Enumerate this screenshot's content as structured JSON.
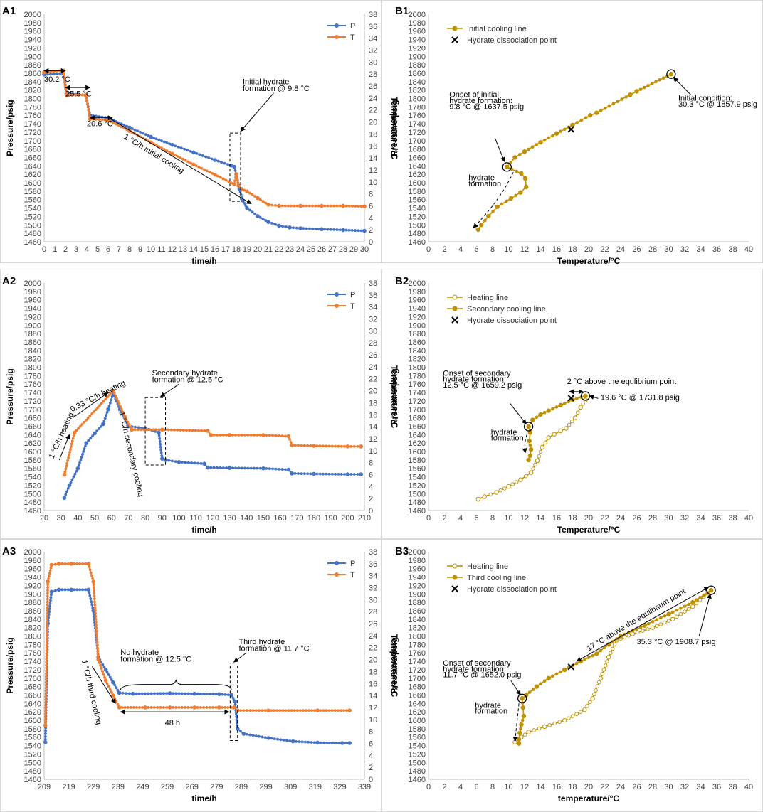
{
  "colors": {
    "P": "#4472C4",
    "T": "#ED7D31",
    "gold": "#BF9000",
    "box": "#000000"
  },
  "chart_data": [
    {
      "id": "A1",
      "type": "line",
      "panel_label": "A1",
      "xlabel": "time/h",
      "ylabel": "Pressure/psig",
      "y2label": "Temperature/°C",
      "xlim": [
        0,
        30
      ],
      "xstep": 1,
      "ylim": [
        1460,
        2000
      ],
      "ystep": 20,
      "y2lim": [
        0,
        38
      ],
      "y2step": 2,
      "series": [
        {
          "name": "P",
          "axis": "left",
          "color": "P",
          "x": [
            0,
            1.8,
            2.1,
            3.9,
            4.3,
            6.0,
            8,
            10,
            12,
            14,
            16,
            17.5,
            17.8,
            18.0,
            18.3,
            18.6,
            19,
            20,
            21,
            22,
            23,
            24,
            26,
            28,
            30
          ],
          "y": [
            1857,
            1859,
            1812,
            1808,
            1760,
            1754,
            1731,
            1709,
            1690,
            1672,
            1654,
            1641,
            1638,
            1620,
            1585,
            1558,
            1540,
            1521,
            1507,
            1498,
            1494,
            1492,
            1490,
            1488,
            1486
          ]
        },
        {
          "name": "T",
          "axis": "right",
          "color": "T",
          "x": [
            0,
            1.8,
            2.1,
            3.9,
            4.3,
            6.0,
            8,
            10,
            12,
            14,
            16,
            17.8,
            18.0,
            18.2,
            18.5,
            19,
            20,
            21,
            22,
            24,
            26,
            28,
            30
          ],
          "y": [
            28.3,
            28.6,
            24.5,
            24.5,
            20.5,
            20.3,
            18.5,
            16.6,
            14.7,
            12.9,
            11.2,
            9.6,
            11.3,
            9.4,
            8.8,
            8.4,
            7.3,
            6.2,
            6.0,
            6.0,
            6.0,
            6.0,
            5.9
          ]
        }
      ],
      "legend": [
        "P",
        "T"
      ],
      "annotations": [
        "30.2 °C",
        "25.5 °C",
        "20.6 °C",
        "1 °C/h initial cooling",
        "Initial hydrate",
        "formation @ 9.8 °C"
      ]
    },
    {
      "id": "B1",
      "type": "scatter",
      "panel_label": "B1",
      "xlabel": "Temperature/°C",
      "ylabel": "Pressure/psig",
      "xlim": [
        0,
        40
      ],
      "xstep": 2,
      "ylim": [
        1460,
        2000
      ],
      "ystep": 20,
      "series": [
        {
          "name": "Initial cooling line",
          "style": "filled",
          "x": [
            30.3,
            26,
            25.2,
            21,
            20.2,
            18,
            16,
            14,
            12,
            10.8,
            9.8,
            11.6,
            12.1,
            12.2,
            11.5,
            10.3,
            8.6,
            7.5,
            6.6,
            6.2
          ],
          "y": [
            1857.9,
            1817,
            1809,
            1766,
            1760,
            1737,
            1717,
            1696,
            1674,
            1660,
            1637.5,
            1622,
            1610,
            1590,
            1577,
            1563,
            1543,
            1521,
            1500,
            1489
          ]
        }
      ],
      "dissociation_point": {
        "x": 17.8,
        "y": 1727
      },
      "legend": [
        "Initial cooling line",
        "Hydrate dissociation point"
      ],
      "annotations": [
        "Onset of initial",
        "hydrate formation:",
        "9.8 °C @ 1637.5 psig",
        "Initial  condition:",
        "30.3 °C @ 1857.9 psig",
        "hydrate",
        "formation"
      ]
    },
    {
      "id": "A2",
      "type": "line",
      "panel_label": "A2",
      "xlabel": "time/h",
      "ylabel": "Pressure/psig",
      "y2label": "Temperature/°C",
      "xlim": [
        20,
        210
      ],
      "xstep": 10,
      "ylim": [
        1460,
        2000
      ],
      "ystep": 20,
      "y2lim": [
        0,
        38
      ],
      "y2step": 2,
      "series": [
        {
          "name": "P",
          "axis": "left",
          "color": "P",
          "x": [
            32,
            35,
            40,
            45,
            50,
            55,
            58,
            61,
            65,
            70,
            80,
            88,
            90,
            92,
            100,
            115,
            117,
            130,
            150,
            165,
            167,
            180,
            200,
            208
          ],
          "y": [
            1490,
            1520,
            1560,
            1620,
            1643,
            1665,
            1700,
            1738,
            1700,
            1660,
            1655,
            1645,
            1583,
            1580,
            1575,
            1571,
            1562,
            1561,
            1560,
            1557,
            1548,
            1547,
            1546,
            1546
          ]
        },
        {
          "name": "T",
          "axis": "right",
          "color": "T",
          "x": [
            32,
            38,
            61,
            68,
            72,
            90,
            117,
            119,
            130,
            150,
            165,
            167,
            180,
            200,
            208
          ],
          "y": [
            6.0,
            13.0,
            20.0,
            15.6,
            13.5,
            13.5,
            13.3,
            12.6,
            12.6,
            12.6,
            12.4,
            10.9,
            10.8,
            10.7,
            10.7
          ]
        }
      ],
      "legend": [
        "P",
        "T"
      ],
      "annotations": [
        "1 °C/h heating",
        "0.33 °C/h heating",
        "1 °C/h secondary cooling",
        "Secondary hydrate",
        "formation @ 12.5 °C"
      ]
    },
    {
      "id": "B2",
      "type": "scatter",
      "panel_label": "B2",
      "xlabel": "Temperature/°C",
      "ylabel": "Pressure/psig",
      "xlim": [
        0,
        40
      ],
      "xstep": 2,
      "ylim": [
        1460,
        2000
      ],
      "ystep": 20,
      "series": [
        {
          "name": "Heating line",
          "style": "open",
          "x": [
            6.2,
            7.0,
            8.5,
            10,
            11.5,
            12.8,
            13.6,
            14.2,
            15.0,
            15.7,
            16.5,
            17.2,
            18.3,
            19.0,
            19.6,
            19.6
          ],
          "y": [
            1487,
            1493,
            1503,
            1517,
            1533,
            1550,
            1578,
            1610,
            1633,
            1641,
            1649,
            1655,
            1680,
            1705,
            1722,
            1731.8
          ]
        },
        {
          "name": "Secondary cooling line",
          "style": "filled",
          "x": [
            19.6,
            18.0,
            16.5,
            15.0,
            14.0,
            13.0,
            12.5,
            12.7,
            12.6,
            12.8,
            12.7,
            12.5
          ],
          "y": [
            1731.8,
            1723,
            1710,
            1697,
            1688,
            1675,
            1659.2,
            1645,
            1625,
            1605,
            1590,
            1580
          ]
        }
      ],
      "dissociation_point": {
        "x": 17.8,
        "y": 1727
      },
      "legend": [
        "Heating line",
        "Secondary cooling line",
        "Hydrate dissociation point"
      ],
      "annotations": [
        "Onset of secondary",
        "hydrate formation:",
        "12.5 °C @ 1659.2 psig",
        "2 °C above the equlibrium point",
        "19.6 °C @ 1731.8 psig",
        "hydrate",
        "formation"
      ]
    },
    {
      "id": "A3",
      "type": "line",
      "panel_label": "A3",
      "xlabel": "time/h",
      "ylabel": "Pressure/psig",
      "y2label": "Temperature/°C",
      "xlim": [
        209,
        339
      ],
      "xstep": 10,
      "ylim": [
        1460,
        2000
      ],
      "ystep": 20,
      "y2lim": [
        0,
        38
      ],
      "y2step": 2,
      "series": [
        {
          "name": "P",
          "axis": "left",
          "color": "P",
          "x": [
            209.5,
            210.5,
            212,
            215,
            220,
            227,
            229,
            231,
            234,
            237,
            239.5,
            245,
            260,
            270,
            280,
            285,
            286.5,
            287.5,
            290,
            300,
            310,
            320,
            330,
            333
          ],
          "y": [
            1548,
            1830,
            1905,
            1910,
            1910,
            1910,
            1860,
            1750,
            1720,
            1690,
            1665,
            1663,
            1664,
            1663,
            1662,
            1660,
            1645,
            1580,
            1568,
            1558,
            1550,
            1547,
            1546,
            1546
          ]
        },
        {
          "name": "T",
          "axis": "right",
          "color": "T",
          "x": [
            209.5,
            210.5,
            212,
            215,
            220,
            227,
            229,
            231,
            234,
            237,
            239.5,
            250,
            260,
            270,
            280,
            286,
            287.5,
            300,
            320,
            333
          ],
          "y": [
            9.0,
            33.0,
            35.8,
            36.0,
            36.0,
            36.0,
            33.0,
            20.0,
            16.5,
            14.0,
            12.0,
            12.0,
            12.0,
            12.0,
            12.0,
            12.0,
            11.5,
            11.5,
            11.5,
            11.5
          ]
        }
      ],
      "legend": [
        "P",
        "T"
      ],
      "annotations": [
        "No hydrate",
        "formation @ 12.5 °C",
        "Third hydrate",
        "formation @ 11.7 °C",
        "1 °C/h third cooling",
        "48 h"
      ]
    },
    {
      "id": "B3",
      "type": "scatter",
      "panel_label": "B3",
      "xlabel": "temperature/°C",
      "ylabel": "Pressure/psig",
      "xlim": [
        0,
        40
      ],
      "xstep": 2,
      "ylim": [
        1460,
        2000
      ],
      "ystep": 20,
      "series": [
        {
          "name": "Heating line",
          "style": "open",
          "x": [
            10.8,
            11.6,
            12.5,
            14.5,
            17.0,
            19.5,
            20.5,
            21.5,
            22.5,
            23.5,
            25.5,
            28,
            30.5,
            33,
            35.3
          ],
          "y": [
            1548,
            1560,
            1572,
            1585,
            1600,
            1625,
            1652,
            1700,
            1750,
            1790,
            1805,
            1820,
            1840,
            1870,
            1908.7
          ]
        },
        {
          "name": "Third cooling line",
          "style": "filled",
          "x": [
            35.3,
            33,
            30,
            27,
            24,
            22.5,
            21,
            19,
            17,
            15,
            13.5,
            12.2,
            11.7,
            11.8,
            11.9,
            11.6,
            11.4,
            11.3,
            11.3
          ],
          "y": [
            1908.7,
            1880,
            1852,
            1825,
            1800,
            1780,
            1758,
            1740,
            1720,
            1700,
            1680,
            1660,
            1652.0,
            1630,
            1610,
            1590,
            1570,
            1555,
            1545
          ]
        }
      ],
      "dissociation_point": {
        "x": 17.8,
        "y": 1727
      },
      "legend": [
        "Heating line",
        "Third cooling line",
        "Hydrate dissociation point"
      ],
      "annotations": [
        "Onset of secondary",
        "hydrate formation:",
        "11.7 °C @ 1652.0 psig",
        "17 °C above the equlibrium point",
        "35.3 °C @ 1908.7 psig",
        "hydrate",
        "formation"
      ]
    }
  ]
}
